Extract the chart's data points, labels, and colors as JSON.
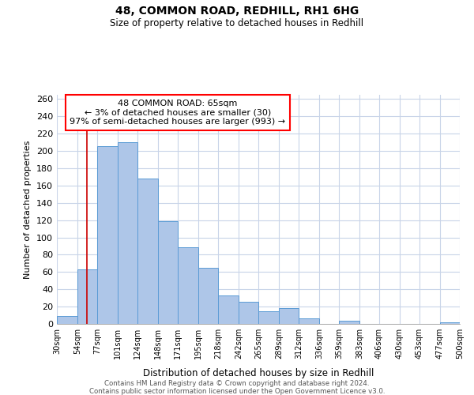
{
  "title": "48, COMMON ROAD, REDHILL, RH1 6HG",
  "subtitle": "Size of property relative to detached houses in Redhill",
  "xlabel": "Distribution of detached houses by size in Redhill",
  "ylabel": "Number of detached properties",
  "bar_color": "#aec6e8",
  "bar_edge_color": "#5b9bd5",
  "annotation_title": "48 COMMON ROAD: 65sqm",
  "annotation_line1": "← 3% of detached houses are smaller (30)",
  "annotation_line2": "97% of semi-detached houses are larger (993) →",
  "property_line_x": 65,
  "footer_line1": "Contains HM Land Registry data © Crown copyright and database right 2024.",
  "footer_line2": "Contains public sector information licensed under the Open Government Licence v3.0.",
  "bins": [
    30,
    54,
    77,
    101,
    124,
    148,
    171,
    195,
    218,
    242,
    265,
    289,
    312,
    336,
    359,
    383,
    406,
    430,
    453,
    477,
    500
  ],
  "counts": [
    9,
    63,
    206,
    210,
    168,
    119,
    89,
    65,
    33,
    26,
    15,
    18,
    6,
    0,
    4,
    0,
    0,
    0,
    0,
    2
  ],
  "ylim": [
    0,
    265
  ],
  "yticks": [
    0,
    20,
    40,
    60,
    80,
    100,
    120,
    140,
    160,
    180,
    200,
    220,
    240,
    260
  ],
  "background_color": "#ffffff",
  "grid_color": "#c8d4e8"
}
